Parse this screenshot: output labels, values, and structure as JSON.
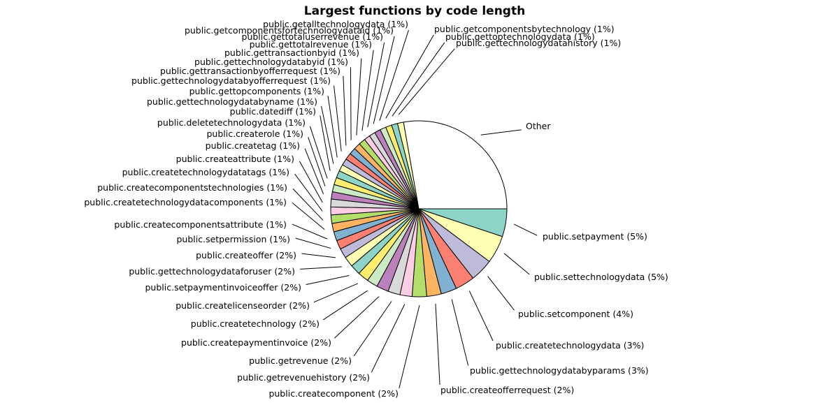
{
  "chart_data": {
    "type": "pie",
    "title": "Largest functions by code length",
    "slices": [
      {
        "label": "public.setpayment (5%)",
        "value": 4.6,
        "color": "#8dd3c7"
      },
      {
        "label": "public.settechnologydata (5%)",
        "value": 4.6,
        "color": "#ffffb3"
      },
      {
        "label": "public.setcomponent (4%)",
        "value": 3.8,
        "color": "#bebada"
      },
      {
        "label": "public.createtechnologydata (3%)",
        "value": 3.2,
        "color": "#fb8072"
      },
      {
        "label": "public.gettechnologydatabyparams (3%)",
        "value": 2.6,
        "color": "#80b1d3"
      },
      {
        "label": "public.createofferrequest (2%)",
        "value": 2.4,
        "color": "#fdb462"
      },
      {
        "label": "public.createcomponent (2%)",
        "value": 2.4,
        "color": "#b3de69"
      },
      {
        "label": "public.getrevenuehistory (2%)",
        "value": 2.0,
        "color": "#fccde5"
      },
      {
        "label": "public.getrevenue (2%)",
        "value": 2.0,
        "color": "#d9d9d9"
      },
      {
        "label": "public.createpaymentinvoice (2%)",
        "value": 2.0,
        "color": "#bc80bd"
      },
      {
        "label": "public.createtechnology (2%)",
        "value": 1.8,
        "color": "#ccebc5"
      },
      {
        "label": "public.createlicenseorder (2%)",
        "value": 1.8,
        "color": "#ffed6f"
      },
      {
        "label": "public.setpaymentinvoiceoffer (2%)",
        "value": 1.7,
        "color": "#8dd3c7"
      },
      {
        "label": "public.gettechnologydataforuser (2%)",
        "value": 1.7,
        "color": "#ffffb3"
      },
      {
        "label": "public.createoffer (2%)",
        "value": 1.6,
        "color": "#bebada"
      },
      {
        "label": "public.setpermission (1%)",
        "value": 1.5,
        "color": "#fb8072"
      },
      {
        "label": "public.createcomponentsattribute (1%)",
        "value": 1.5,
        "color": "#80b1d3"
      },
      {
        "label": "public.createtechnologydatacomponents (1%)",
        "value": 1.4,
        "color": "#fdb462"
      },
      {
        "label": "public.createcomponentstechnologies (1%)",
        "value": 1.4,
        "color": "#b3de69"
      },
      {
        "label": "public.createtechnologydatatags (1%)",
        "value": 1.3,
        "color": "#fccde5"
      },
      {
        "label": "public.createattribute (1%)",
        "value": 1.3,
        "color": "#d9d9d9"
      },
      {
        "label": "public.createtag (1%)",
        "value": 1.2,
        "color": "#bc80bd"
      },
      {
        "label": "public.createrole (1%)",
        "value": 1.2,
        "color": "#ccebc5"
      },
      {
        "label": "public.deletetechnologydata (1%)",
        "value": 1.2,
        "color": "#ffed6f"
      },
      {
        "label": "public.datediff (1%)",
        "value": 1.2,
        "color": "#8dd3c7"
      },
      {
        "label": "public.gettechnologydatabyname (1%)",
        "value": 1.1,
        "color": "#ffffb3"
      },
      {
        "label": "public.gettopcomponents (1%)",
        "value": 1.1,
        "color": "#bebada"
      },
      {
        "label": "public.gettechnologydatabyofferrequest (1%)",
        "value": 1.1,
        "color": "#fb8072"
      },
      {
        "label": "public.gettransactionbyofferrequest (1%)",
        "value": 1.1,
        "color": "#80b1d3"
      },
      {
        "label": "public.gettechnologydatabyid (1%)",
        "value": 1.1,
        "color": "#fdb462"
      },
      {
        "label": "public.gettransactionbyid (1%)",
        "value": 1.1,
        "color": "#b3de69"
      },
      {
        "label": "public.gettotalrevenue (1%)",
        "value": 1.0,
        "color": "#fccde5"
      },
      {
        "label": "public.gettotaluserrevenue (1%)",
        "value": 1.0,
        "color": "#d9d9d9"
      },
      {
        "label": "public.getcomponentsfortechnologydataid (1%)",
        "value": 1.0,
        "color": "#bc80bd"
      },
      {
        "label": "public.getalltechnologydata (1%)",
        "value": 1.0,
        "color": "#ccebc5"
      },
      {
        "label": "public.getcomponentsbytechnology (1%)",
        "value": 1.0,
        "color": "#ffed6f"
      },
      {
        "label": "public.gettoptechnologydata (1%)",
        "value": 1.0,
        "color": "#8dd3c7"
      },
      {
        "label": "public.gettechnologydatahistory (1%)",
        "value": 1.0,
        "color": "#ffffb3"
      },
      {
        "label": "Other",
        "value": 25.0,
        "color": "#ffffff"
      }
    ]
  }
}
